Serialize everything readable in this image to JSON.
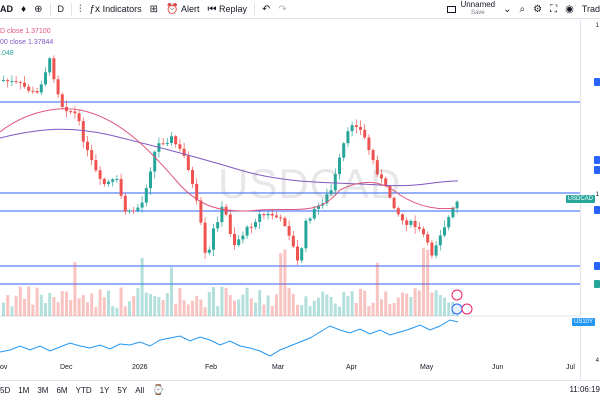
{
  "toolbar": {
    "symbol": "AD",
    "interval": "D",
    "indicators_label": "Indicators",
    "alert_label": "Alert",
    "replay_label": "Replay",
    "layout_name": "Unnamed",
    "layout_saved": "Save",
    "trade_label": "Trad"
  },
  "legend": {
    "ma1": "D close  1.37100",
    "ma2": "00 close  1.37844",
    "ma3": ".048"
  },
  "watermark": "USDCAD",
  "price_tags": {
    "usdcad": "USDCAD",
    "us10y": "US10Y"
  },
  "time_axis": [
    "ov",
    "Dec",
    "2026",
    "Feb",
    "Mar",
    "Apr",
    "May",
    "Jun",
    "Jul"
  ],
  "ranges": [
    "5D",
    "1M",
    "3M",
    "6M",
    "YTD",
    "1Y",
    "5Y",
    "All"
  ],
  "clock": "11:06:19",
  "colors": {
    "up": "#26a69a",
    "down": "#ef5350",
    "ma_fast": "#e0557a",
    "ma_slow": "#7e57c2",
    "hline": "#2962ff",
    "yield": "#2196f3"
  }
}
